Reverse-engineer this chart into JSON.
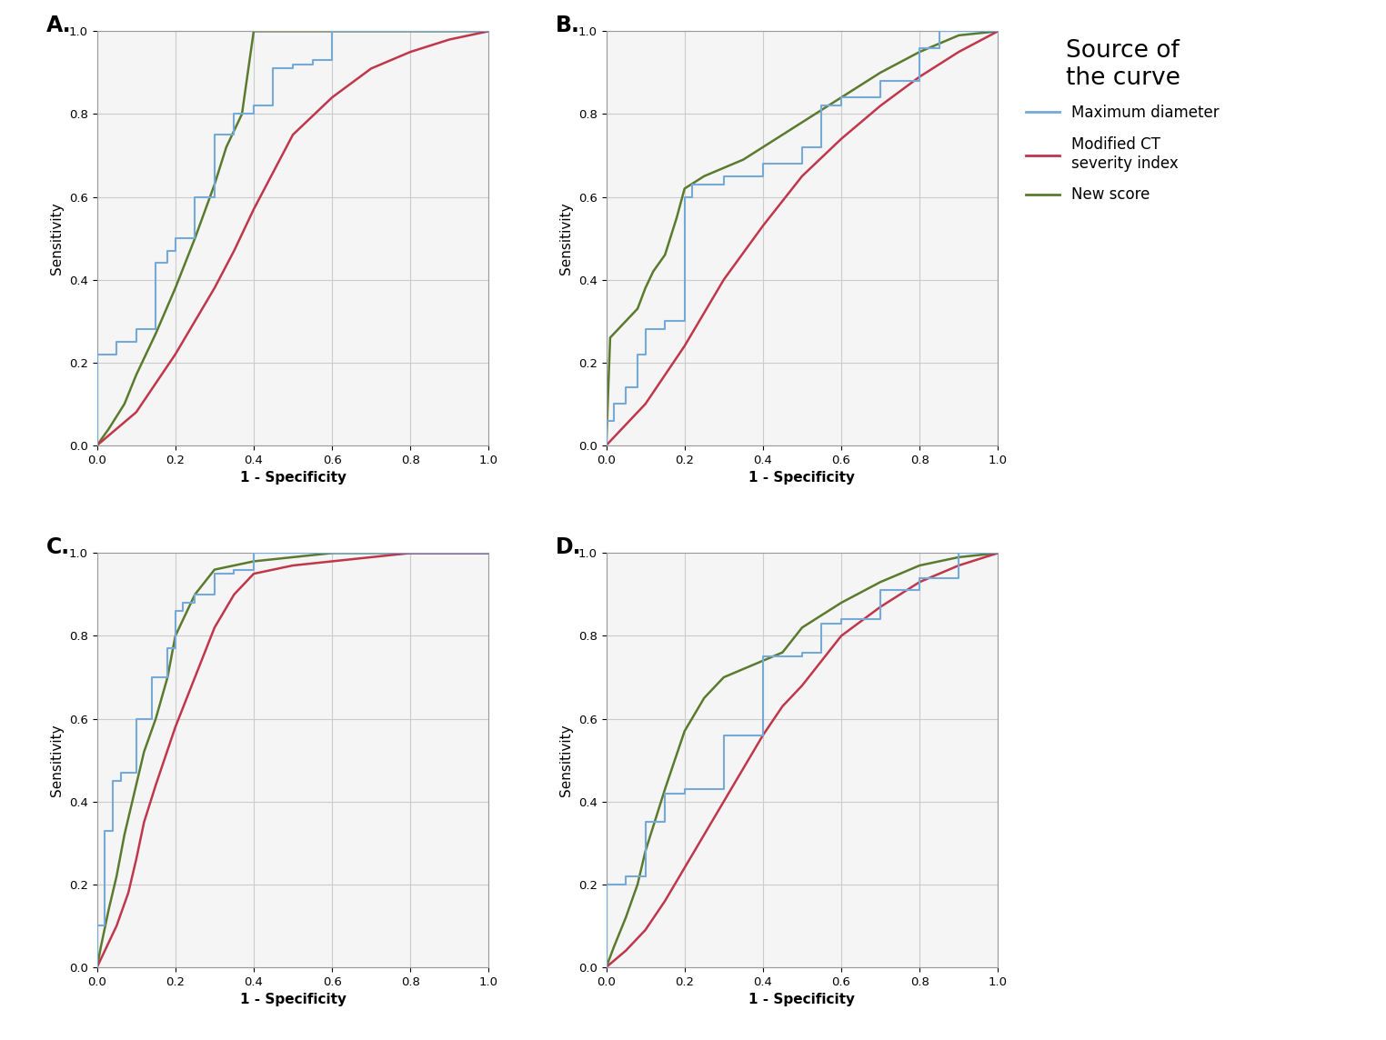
{
  "colors": {
    "blue": "#74a9d8",
    "red": "#c0364a",
    "green": "#5a7a2e"
  },
  "legend_title": "Source of\nthe curve",
  "subplot_labels": [
    "A.",
    "B.",
    "C.",
    "D."
  ],
  "xlabel": "1 - Specificity",
  "ylabel": "Sensitivity",
  "A": {
    "blue_x": [
      0.0,
      0.0,
      0.05,
      0.05,
      0.1,
      0.1,
      0.15,
      0.15,
      0.18,
      0.18,
      0.2,
      0.2,
      0.25,
      0.25,
      0.3,
      0.3,
      0.35,
      0.35,
      0.4,
      0.4,
      0.45,
      0.45,
      0.5,
      0.5,
      0.55,
      0.55,
      0.6,
      0.6,
      1.0
    ],
    "blue_y": [
      0.0,
      0.22,
      0.22,
      0.25,
      0.25,
      0.28,
      0.28,
      0.44,
      0.44,
      0.47,
      0.47,
      0.5,
      0.5,
      0.6,
      0.6,
      0.75,
      0.75,
      0.8,
      0.8,
      0.82,
      0.82,
      0.91,
      0.91,
      0.92,
      0.92,
      0.93,
      0.93,
      1.0,
      1.0
    ],
    "red_x": [
      0.0,
      0.05,
      0.1,
      0.15,
      0.2,
      0.25,
      0.3,
      0.35,
      0.4,
      0.45,
      0.5,
      0.6,
      0.7,
      0.8,
      0.9,
      1.0
    ],
    "red_y": [
      0.0,
      0.04,
      0.08,
      0.15,
      0.22,
      0.3,
      0.38,
      0.47,
      0.57,
      0.66,
      0.75,
      0.84,
      0.91,
      0.95,
      0.98,
      1.0
    ],
    "green_x": [
      0.0,
      0.03,
      0.07,
      0.1,
      0.15,
      0.2,
      0.25,
      0.3,
      0.33,
      0.37,
      0.4,
      0.5,
      0.6,
      0.7,
      0.8,
      1.0
    ],
    "green_y": [
      0.0,
      0.04,
      0.1,
      0.17,
      0.27,
      0.38,
      0.5,
      0.63,
      0.72,
      0.8,
      1.0,
      1.0,
      1.0,
      1.0,
      1.0,
      1.0
    ]
  },
  "B": {
    "blue_x": [
      0.0,
      0.0,
      0.02,
      0.02,
      0.05,
      0.05,
      0.08,
      0.08,
      0.1,
      0.1,
      0.15,
      0.15,
      0.2,
      0.2,
      0.22,
      0.22,
      0.3,
      0.3,
      0.4,
      0.4,
      0.5,
      0.5,
      0.55,
      0.55,
      0.6,
      0.6,
      0.7,
      0.7,
      0.8,
      0.8,
      0.85,
      0.85,
      1.0
    ],
    "blue_y": [
      0.0,
      0.06,
      0.06,
      0.1,
      0.1,
      0.14,
      0.14,
      0.22,
      0.22,
      0.28,
      0.28,
      0.3,
      0.3,
      0.6,
      0.6,
      0.63,
      0.63,
      0.65,
      0.65,
      0.68,
      0.68,
      0.72,
      0.72,
      0.82,
      0.82,
      0.84,
      0.84,
      0.88,
      0.88,
      0.96,
      0.96,
      1.0,
      1.0
    ],
    "red_x": [
      0.0,
      0.05,
      0.1,
      0.15,
      0.2,
      0.25,
      0.3,
      0.4,
      0.5,
      0.6,
      0.7,
      0.8,
      0.9,
      1.0
    ],
    "red_y": [
      0.0,
      0.05,
      0.1,
      0.17,
      0.24,
      0.32,
      0.4,
      0.53,
      0.65,
      0.74,
      0.82,
      0.89,
      0.95,
      1.0
    ],
    "green_x": [
      0.0,
      0.01,
      0.03,
      0.05,
      0.08,
      0.1,
      0.12,
      0.15,
      0.18,
      0.2,
      0.25,
      0.3,
      0.35,
      0.4,
      0.5,
      0.6,
      0.7,
      0.8,
      0.9,
      1.0
    ],
    "green_y": [
      0.0,
      0.26,
      0.28,
      0.3,
      0.33,
      0.38,
      0.42,
      0.46,
      0.55,
      0.62,
      0.65,
      0.67,
      0.69,
      0.72,
      0.78,
      0.84,
      0.9,
      0.95,
      0.99,
      1.0
    ]
  },
  "C": {
    "blue_x": [
      0.0,
      0.0,
      0.02,
      0.02,
      0.04,
      0.04,
      0.06,
      0.06,
      0.1,
      0.1,
      0.14,
      0.14,
      0.18,
      0.18,
      0.2,
      0.2,
      0.22,
      0.22,
      0.25,
      0.25,
      0.3,
      0.3,
      0.35,
      0.35,
      0.4,
      0.4,
      0.5,
      0.5,
      1.0
    ],
    "blue_y": [
      0.0,
      0.1,
      0.1,
      0.33,
      0.33,
      0.45,
      0.45,
      0.47,
      0.47,
      0.6,
      0.6,
      0.7,
      0.7,
      0.77,
      0.77,
      0.86,
      0.86,
      0.88,
      0.88,
      0.9,
      0.9,
      0.95,
      0.95,
      0.96,
      0.96,
      1.0,
      1.0,
      1.0,
      1.0
    ],
    "red_x": [
      0.0,
      0.01,
      0.03,
      0.05,
      0.08,
      0.1,
      0.12,
      0.15,
      0.2,
      0.25,
      0.3,
      0.35,
      0.4,
      0.5,
      0.6,
      0.7,
      0.8,
      1.0
    ],
    "red_y": [
      0.0,
      0.02,
      0.06,
      0.1,
      0.18,
      0.26,
      0.35,
      0.44,
      0.58,
      0.7,
      0.82,
      0.9,
      0.95,
      0.97,
      0.98,
      0.99,
      1.0,
      1.0
    ],
    "green_x": [
      0.0,
      0.01,
      0.03,
      0.05,
      0.07,
      0.1,
      0.12,
      0.15,
      0.18,
      0.2,
      0.25,
      0.3,
      0.35,
      0.4,
      0.5,
      0.6,
      1.0
    ],
    "green_y": [
      0.0,
      0.05,
      0.14,
      0.22,
      0.32,
      0.44,
      0.52,
      0.6,
      0.7,
      0.8,
      0.9,
      0.96,
      0.97,
      0.98,
      0.99,
      1.0,
      1.0
    ]
  },
  "D": {
    "blue_x": [
      0.0,
      0.0,
      0.05,
      0.05,
      0.1,
      0.1,
      0.15,
      0.15,
      0.2,
      0.2,
      0.3,
      0.3,
      0.4,
      0.4,
      0.5,
      0.5,
      0.55,
      0.55,
      0.6,
      0.6,
      0.7,
      0.7,
      0.8,
      0.8,
      0.9,
      0.9,
      1.0
    ],
    "blue_y": [
      0.0,
      0.2,
      0.2,
      0.22,
      0.22,
      0.35,
      0.35,
      0.42,
      0.42,
      0.43,
      0.43,
      0.56,
      0.56,
      0.75,
      0.75,
      0.76,
      0.76,
      0.83,
      0.83,
      0.84,
      0.84,
      0.91,
      0.91,
      0.94,
      0.94,
      1.0,
      1.0
    ],
    "red_x": [
      0.0,
      0.05,
      0.1,
      0.15,
      0.2,
      0.25,
      0.3,
      0.35,
      0.4,
      0.45,
      0.5,
      0.55,
      0.6,
      0.7,
      0.8,
      0.9,
      1.0
    ],
    "red_y": [
      0.0,
      0.04,
      0.09,
      0.16,
      0.24,
      0.32,
      0.4,
      0.48,
      0.56,
      0.63,
      0.68,
      0.74,
      0.8,
      0.87,
      0.93,
      0.97,
      1.0
    ],
    "green_x": [
      0.0,
      0.02,
      0.05,
      0.08,
      0.1,
      0.15,
      0.2,
      0.25,
      0.3,
      0.35,
      0.4,
      0.45,
      0.5,
      0.6,
      0.7,
      0.8,
      0.9,
      1.0
    ],
    "green_y": [
      0.0,
      0.05,
      0.12,
      0.2,
      0.28,
      0.43,
      0.57,
      0.65,
      0.7,
      0.72,
      0.74,
      0.76,
      0.82,
      0.88,
      0.93,
      0.97,
      0.99,
      1.0
    ]
  },
  "background": "#f5f5f5",
  "grid_color": "#cccccc",
  "spine_color": "#999999"
}
